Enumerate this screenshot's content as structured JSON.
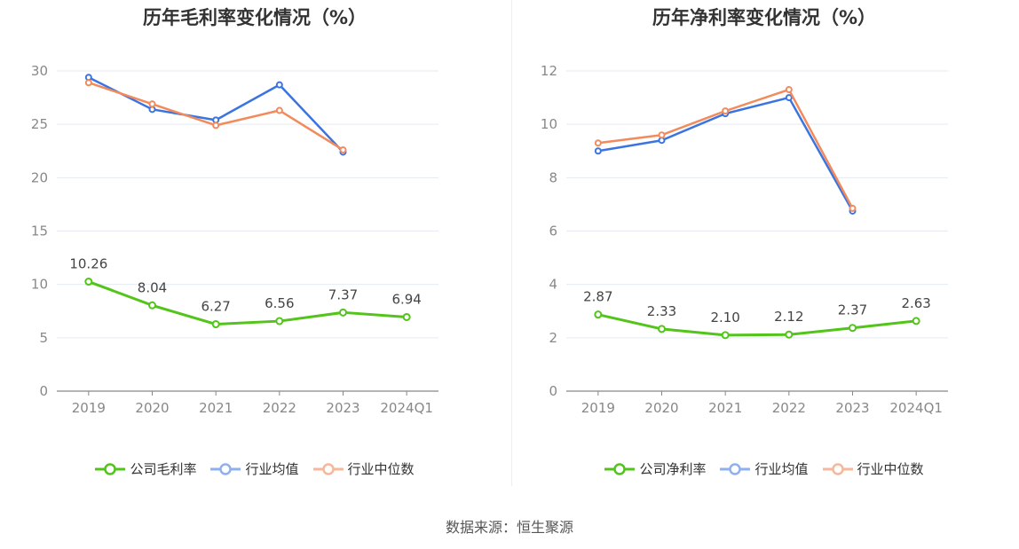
{
  "source": "数据来源：恒生聚源",
  "colors": {
    "company": "#52c41a",
    "avg": "#3b74e0",
    "median": "#f28a5c",
    "grid": "#e5e9f2",
    "axis": "#888888"
  },
  "charts": [
    {
      "title": "历年毛利率变化情况（%）",
      "legend": [
        "公司毛利率",
        "行业均值",
        "行业中位数"
      ]
    },
    {
      "title": "历年净利率变化情况（%）",
      "legend": [
        "公司净利率",
        "行业均值",
        "行业中位数"
      ]
    }
  ],
  "chart_data": [
    {
      "type": "line",
      "title": "历年毛利率变化情况（%）",
      "categories": [
        "2019",
        "2020",
        "2021",
        "2022",
        "2023",
        "2024Q1"
      ],
      "ylim": [
        0,
        30
      ],
      "yticks": [
        0,
        5,
        10,
        15,
        20,
        25,
        30
      ],
      "grid": true,
      "legend_position": "bottom",
      "series": [
        {
          "name": "公司毛利率",
          "values": [
            10.26,
            8.04,
            6.27,
            6.56,
            7.37,
            6.94
          ],
          "labels": [
            "10.26",
            "8.04",
            "6.27",
            "6.56",
            "7.37",
            "6.94"
          ]
        },
        {
          "name": "行业均值",
          "values": [
            29.4,
            26.4,
            25.4,
            28.7,
            22.4,
            null
          ]
        },
        {
          "name": "行业中位数",
          "values": [
            28.9,
            26.9,
            24.9,
            26.3,
            22.6,
            null
          ]
        }
      ]
    },
    {
      "type": "line",
      "title": "历年净利率变化情况（%）",
      "categories": [
        "2019",
        "2020",
        "2021",
        "2022",
        "2023",
        "2024Q1"
      ],
      "ylim": [
        0,
        12
      ],
      "yticks": [
        0,
        2,
        4,
        6,
        8,
        10,
        12
      ],
      "grid": true,
      "legend_position": "bottom",
      "series": [
        {
          "name": "公司净利率",
          "values": [
            2.87,
            2.33,
            2.1,
            2.12,
            2.37,
            2.63
          ],
          "labels": [
            "2.87",
            "2.33",
            "2.10",
            "2.12",
            "2.37",
            "2.63"
          ]
        },
        {
          "name": "行业均值",
          "values": [
            9.0,
            9.4,
            10.4,
            11.0,
            6.75,
            null
          ]
        },
        {
          "name": "行业中位数",
          "values": [
            9.3,
            9.6,
            10.5,
            11.3,
            6.85,
            null
          ]
        }
      ]
    }
  ]
}
